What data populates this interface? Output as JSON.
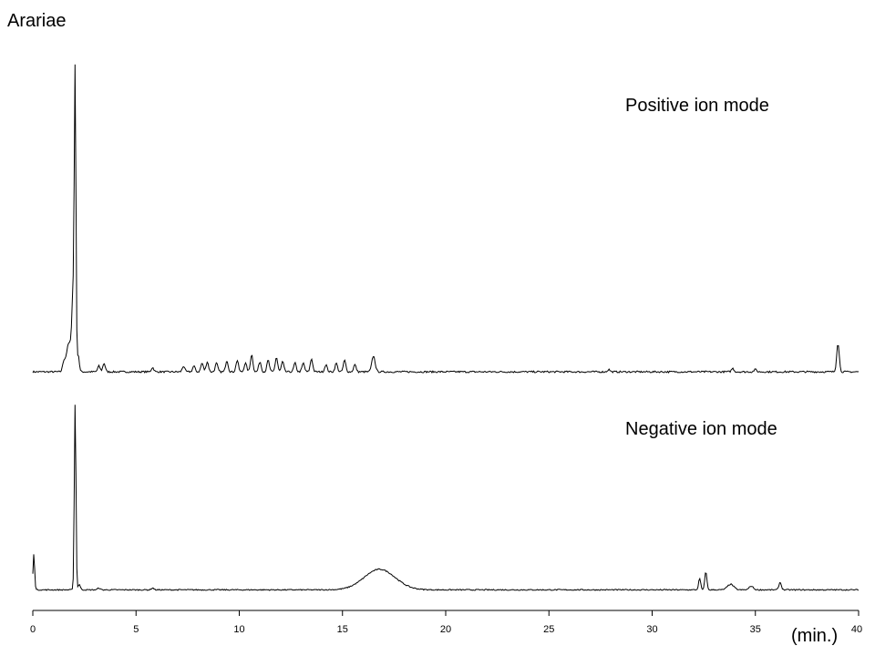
{
  "chart_data": {
    "type": "line",
    "title": "Arariae",
    "xlabel": "(min.)",
    "ylabel": "",
    "xlim": [
      0,
      40
    ],
    "grid": false,
    "x_ticks": [
      "0",
      "5",
      "10",
      "15",
      "20",
      "25",
      "30",
      "35",
      "40"
    ],
    "series": [
      {
        "name": "Positive ion mode",
        "baseline": 0.02,
        "peaks": [
          [
            1.5,
            0.03,
            0.06
          ],
          [
            1.75,
            0.1,
            0.12
          ],
          [
            1.95,
            0.25,
            0.06
          ],
          [
            2.05,
            1.0,
            0.04
          ],
          [
            2.2,
            0.06,
            0.05
          ],
          [
            3.2,
            0.02,
            0.06
          ],
          [
            3.45,
            0.03,
            0.06
          ],
          [
            5.8,
            0.015,
            0.06
          ],
          [
            7.3,
            0.02,
            0.06
          ],
          [
            7.8,
            0.02,
            0.06
          ],
          [
            8.2,
            0.03,
            0.06
          ],
          [
            8.45,
            0.035,
            0.06
          ],
          [
            8.9,
            0.03,
            0.06
          ],
          [
            9.4,
            0.04,
            0.06
          ],
          [
            9.9,
            0.04,
            0.06
          ],
          [
            10.3,
            0.03,
            0.06
          ],
          [
            10.6,
            0.06,
            0.06
          ],
          [
            11.0,
            0.035,
            0.06
          ],
          [
            11.4,
            0.04,
            0.06
          ],
          [
            11.8,
            0.05,
            0.06
          ],
          [
            12.1,
            0.035,
            0.06
          ],
          [
            12.7,
            0.03,
            0.06
          ],
          [
            13.1,
            0.03,
            0.06
          ],
          [
            13.5,
            0.045,
            0.06
          ],
          [
            14.2,
            0.025,
            0.06
          ],
          [
            14.7,
            0.03,
            0.06
          ],
          [
            15.1,
            0.04,
            0.06
          ],
          [
            15.6,
            0.025,
            0.06
          ],
          [
            16.5,
            0.055,
            0.08
          ],
          [
            27.9,
            0.008,
            0.06
          ],
          [
            33.9,
            0.012,
            0.06
          ],
          [
            35.0,
            0.008,
            0.06
          ],
          [
            39.0,
            0.1,
            0.06
          ]
        ]
      },
      {
        "name": "Negative ion mode",
        "baseline": 0.01,
        "peaks": [
          [
            0.05,
            0.19,
            0.04
          ],
          [
            2.05,
            1.0,
            0.04
          ],
          [
            2.25,
            0.03,
            0.05
          ],
          [
            3.2,
            0.01,
            0.06
          ],
          [
            5.8,
            0.01,
            0.06
          ],
          [
            16.8,
            0.11,
            0.75
          ],
          [
            32.3,
            0.06,
            0.05
          ],
          [
            32.6,
            0.1,
            0.05
          ],
          [
            33.8,
            0.03,
            0.15
          ],
          [
            34.8,
            0.02,
            0.1
          ],
          [
            36.2,
            0.04,
            0.06
          ]
        ]
      }
    ]
  }
}
